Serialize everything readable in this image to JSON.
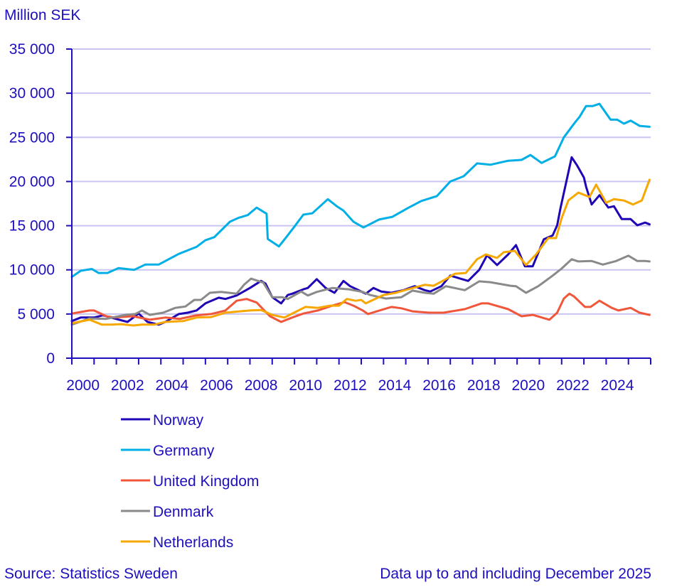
{
  "chart_data": {
    "type": "line",
    "ylabel": "Million SEK",
    "ylim": [
      0,
      35000
    ],
    "yticks": [
      0,
      5000,
      10000,
      15000,
      20000,
      25000,
      30000,
      35000
    ],
    "ytick_labels": [
      "0",
      "5 000",
      "10 000",
      "15 000",
      "20 000",
      "25 000",
      "30 000",
      "35 000"
    ],
    "xlim": [
      2000,
      2026
    ],
    "xtick_labels": [
      "2000",
      "2002",
      "2004",
      "2006",
      "2008",
      "2010",
      "2012",
      "2014",
      "2016",
      "2018",
      "2020",
      "2022",
      "2024"
    ],
    "grid": "horizontal",
    "legend_position": "bottom-left",
    "source": "Source: Statistics Sweden",
    "note": "Data up to and including December 2025",
    "series": [
      {
        "name": "Norway",
        "color": "#1f06b4",
        "points": [
          [
            2000,
            4200
          ],
          [
            2000.4,
            4600
          ],
          [
            2001,
            4600
          ],
          [
            2001.4,
            4850
          ],
          [
            2001.9,
            4500
          ],
          [
            2002.5,
            4100
          ],
          [
            2003,
            5050
          ],
          [
            2003.4,
            4100
          ],
          [
            2003.9,
            3800
          ],
          [
            2004.2,
            4100
          ],
          [
            2004.8,
            5000
          ],
          [
            2005.2,
            5150
          ],
          [
            2005.6,
            5400
          ],
          [
            2006,
            6200
          ],
          [
            2006.6,
            6850
          ],
          [
            2006.9,
            6700
          ],
          [
            2007.4,
            7100
          ],
          [
            2008,
            7950
          ],
          [
            2008.5,
            8750
          ],
          [
            2008.7,
            8450
          ],
          [
            2009,
            6900
          ],
          [
            2009.4,
            6200
          ],
          [
            2009.7,
            7150
          ],
          [
            2009.9,
            7300
          ],
          [
            2010.4,
            7800
          ],
          [
            2010.6,
            7950
          ],
          [
            2011,
            8950
          ],
          [
            2011.4,
            7950
          ],
          [
            2011.8,
            7400
          ],
          [
            2012.2,
            8750
          ],
          [
            2012.5,
            8150
          ],
          [
            2012.8,
            7800
          ],
          [
            2013.2,
            7300
          ],
          [
            2013.55,
            7950
          ],
          [
            2013.9,
            7550
          ],
          [
            2014.35,
            7400
          ],
          [
            2014.9,
            7700
          ],
          [
            2015.4,
            8150
          ],
          [
            2015.85,
            7700
          ],
          [
            2016.1,
            7550
          ],
          [
            2016.6,
            8150
          ],
          [
            2017,
            9350
          ],
          [
            2017.45,
            9000
          ],
          [
            2017.8,
            8750
          ],
          [
            2018.3,
            10000
          ],
          [
            2018.65,
            11650
          ],
          [
            2019.1,
            10550
          ],
          [
            2019.6,
            11750
          ],
          [
            2019.95,
            12800
          ],
          [
            2020.35,
            10400
          ],
          [
            2020.7,
            10400
          ],
          [
            2021.2,
            13450
          ],
          [
            2021.6,
            13900
          ],
          [
            2021.8,
            15050
          ],
          [
            2021.95,
            17000
          ],
          [
            2022.2,
            19850
          ],
          [
            2022.45,
            22750
          ],
          [
            2022.7,
            21800
          ],
          [
            2023,
            20450
          ],
          [
            2023.1,
            19400
          ],
          [
            2023.35,
            17400
          ],
          [
            2023.7,
            18450
          ],
          [
            2024.1,
            17050
          ],
          [
            2024.35,
            17200
          ],
          [
            2024.7,
            15750
          ],
          [
            2025.1,
            15750
          ],
          [
            2025.4,
            15050
          ],
          [
            2025.75,
            15350
          ],
          [
            2025.95,
            15150
          ]
        ]
      },
      {
        "name": "Germany",
        "color": "#00afe6",
        "points": [
          [
            2000,
            9200
          ],
          [
            2000.4,
            9900
          ],
          [
            2000.9,
            10100
          ],
          [
            2001.2,
            9650
          ],
          [
            2001.6,
            9650
          ],
          [
            2002.1,
            10200
          ],
          [
            2002.8,
            10000
          ],
          [
            2003.3,
            10600
          ],
          [
            2003.9,
            10600
          ],
          [
            2004.2,
            11000
          ],
          [
            2004.8,
            11800
          ],
          [
            2005.6,
            12600
          ],
          [
            2006,
            13350
          ],
          [
            2006.4,
            13700
          ],
          [
            2007.1,
            15450
          ],
          [
            2007.5,
            15900
          ],
          [
            2007.9,
            16200
          ],
          [
            2008.3,
            17050
          ],
          [
            2008.75,
            16350
          ],
          [
            2008.8,
            13500
          ],
          [
            2009.3,
            12650
          ],
          [
            2009.65,
            13750
          ],
          [
            2010,
            14900
          ],
          [
            2010.4,
            16250
          ],
          [
            2010.8,
            16400
          ],
          [
            2011.5,
            18000
          ],
          [
            2011.9,
            17200
          ],
          [
            2012.2,
            16700
          ],
          [
            2012.65,
            15450
          ],
          [
            2013.1,
            14800
          ],
          [
            2013.8,
            15700
          ],
          [
            2014.4,
            16000
          ],
          [
            2015.1,
            17000
          ],
          [
            2015.7,
            17800
          ],
          [
            2016.4,
            18350
          ],
          [
            2017,
            20000
          ],
          [
            2017.6,
            20600
          ],
          [
            2018.2,
            22050
          ],
          [
            2018.8,
            21900
          ],
          [
            2019.6,
            22350
          ],
          [
            2020.2,
            22450
          ],
          [
            2020.6,
            23000
          ],
          [
            2021.1,
            22100
          ],
          [
            2021.7,
            22850
          ],
          [
            2022.1,
            25000
          ],
          [
            2022.6,
            26700
          ],
          [
            2022.8,
            27300
          ],
          [
            2023.1,
            28550
          ],
          [
            2023.4,
            28550
          ],
          [
            2023.7,
            28800
          ],
          [
            2024.2,
            27000
          ],
          [
            2024.5,
            27000
          ],
          [
            2024.8,
            26550
          ],
          [
            2025.1,
            26900
          ],
          [
            2025.5,
            26300
          ],
          [
            2025.95,
            26200
          ]
        ]
      },
      {
        "name": "United Kingdom",
        "color": "#f0563a",
        "points": [
          [
            2000,
            5050
          ],
          [
            2000.8,
            5400
          ],
          [
            2001,
            5400
          ],
          [
            2001.55,
            4750
          ],
          [
            2001.9,
            4600
          ],
          [
            2002.75,
            4750
          ],
          [
            2003.5,
            4350
          ],
          [
            2004.2,
            4600
          ],
          [
            2004.85,
            4450
          ],
          [
            2005.6,
            4850
          ],
          [
            2006.25,
            5000
          ],
          [
            2006.9,
            5400
          ],
          [
            2007.4,
            6500
          ],
          [
            2007.85,
            6700
          ],
          [
            2008.3,
            6300
          ],
          [
            2008.9,
            4750
          ],
          [
            2009.4,
            4100
          ],
          [
            2009.9,
            4600
          ],
          [
            2010.4,
            5050
          ],
          [
            2011.05,
            5400
          ],
          [
            2011.7,
            5950
          ],
          [
            2012.25,
            6350
          ],
          [
            2012.65,
            5950
          ],
          [
            2013.07,
            5400
          ],
          [
            2013.3,
            5000
          ],
          [
            2013.7,
            5300
          ],
          [
            2014.35,
            5800
          ],
          [
            2014.8,
            5650
          ],
          [
            2015.3,
            5300
          ],
          [
            2016.05,
            5150
          ],
          [
            2016.7,
            5150
          ],
          [
            2017.65,
            5550
          ],
          [
            2018.4,
            6200
          ],
          [
            2018.7,
            6200
          ],
          [
            2019.05,
            5950
          ],
          [
            2019.6,
            5550
          ],
          [
            2020.2,
            4750
          ],
          [
            2020.7,
            4900
          ],
          [
            2021.45,
            4350
          ],
          [
            2021.8,
            5150
          ],
          [
            2022.1,
            6750
          ],
          [
            2022.35,
            7300
          ],
          [
            2022.55,
            7000
          ],
          [
            2023.05,
            5800
          ],
          [
            2023.3,
            5800
          ],
          [
            2023.7,
            6500
          ],
          [
            2024.25,
            5700
          ],
          [
            2024.55,
            5400
          ],
          [
            2025.1,
            5700
          ],
          [
            2025.5,
            5150
          ],
          [
            2025.95,
            4900
          ]
        ]
      },
      {
        "name": "Denmark",
        "color": "#8a8a8a",
        "points": [
          [
            2000,
            3800
          ],
          [
            2000.8,
            4500
          ],
          [
            2001.55,
            4450
          ],
          [
            2002.4,
            4900
          ],
          [
            2002.85,
            5000
          ],
          [
            2003.15,
            5400
          ],
          [
            2003.5,
            4900
          ],
          [
            2004.1,
            5150
          ],
          [
            2004.65,
            5700
          ],
          [
            2005.1,
            5850
          ],
          [
            2005.5,
            6600
          ],
          [
            2005.8,
            6600
          ],
          [
            2006.2,
            7400
          ],
          [
            2006.7,
            7500
          ],
          [
            2007.4,
            7300
          ],
          [
            2007.75,
            8350
          ],
          [
            2008.05,
            9000
          ],
          [
            2008.6,
            8550
          ],
          [
            2009,
            6900
          ],
          [
            2009.45,
            6900
          ],
          [
            2009.7,
            6700
          ],
          [
            2010.3,
            7550
          ],
          [
            2010.6,
            7100
          ],
          [
            2011,
            7500
          ],
          [
            2011.7,
            7950
          ],
          [
            2012.45,
            7800
          ],
          [
            2013.07,
            7500
          ],
          [
            2013.4,
            7150
          ],
          [
            2014.1,
            6750
          ],
          [
            2014.8,
            6900
          ],
          [
            2015.3,
            7650
          ],
          [
            2015.85,
            7400
          ],
          [
            2016.25,
            7300
          ],
          [
            2016.8,
            8150
          ],
          [
            2017.65,
            7700
          ],
          [
            2018.3,
            8700
          ],
          [
            2018.8,
            8600
          ],
          [
            2019.7,
            8200
          ],
          [
            2019.95,
            8150
          ],
          [
            2020.4,
            7400
          ],
          [
            2020.95,
            8150
          ],
          [
            2021.6,
            9350
          ],
          [
            2022,
            10150
          ],
          [
            2022.45,
            11200
          ],
          [
            2022.75,
            10950
          ],
          [
            2023.35,
            11000
          ],
          [
            2023.85,
            10600
          ],
          [
            2024.45,
            11000
          ],
          [
            2025,
            11600
          ],
          [
            2025.4,
            11000
          ],
          [
            2025.75,
            11000
          ],
          [
            2025.95,
            10950
          ]
        ]
      },
      {
        "name": "Netherlands",
        "color": "#f7a800",
        "points": [
          [
            2000,
            3950
          ],
          [
            2000.8,
            4350
          ],
          [
            2001.35,
            3800
          ],
          [
            2001.8,
            3800
          ],
          [
            2002.2,
            3850
          ],
          [
            2002.75,
            3700
          ],
          [
            2003.15,
            3800
          ],
          [
            2003.7,
            3800
          ],
          [
            2004.2,
            4100
          ],
          [
            2005,
            4200
          ],
          [
            2005.6,
            4600
          ],
          [
            2006.25,
            4650
          ],
          [
            2006.9,
            5150
          ],
          [
            2007.55,
            5300
          ],
          [
            2008,
            5400
          ],
          [
            2008.5,
            5450
          ],
          [
            2009,
            4900
          ],
          [
            2009.55,
            4600
          ],
          [
            2010.1,
            5300
          ],
          [
            2010.5,
            5800
          ],
          [
            2011.05,
            5700
          ],
          [
            2011.6,
            5950
          ],
          [
            2012,
            5950
          ],
          [
            2012.35,
            6700
          ],
          [
            2012.75,
            6500
          ],
          [
            2013,
            6600
          ],
          [
            2013.2,
            6200
          ],
          [
            2014,
            7150
          ],
          [
            2014.55,
            7400
          ],
          [
            2015.1,
            7800
          ],
          [
            2015.85,
            8300
          ],
          [
            2016.25,
            8200
          ],
          [
            2016.8,
            8950
          ],
          [
            2017.2,
            9550
          ],
          [
            2017.7,
            9650
          ],
          [
            2018.2,
            11200
          ],
          [
            2018.6,
            11750
          ],
          [
            2019.1,
            11350
          ],
          [
            2019.4,
            12000
          ],
          [
            2019.9,
            12150
          ],
          [
            2020.4,
            10550
          ],
          [
            2020.85,
            11750
          ],
          [
            2021.4,
            13600
          ],
          [
            2021.75,
            13600
          ],
          [
            2022,
            15850
          ],
          [
            2022.3,
            17850
          ],
          [
            2022.75,
            18750
          ],
          [
            2023.25,
            18250
          ],
          [
            2023.55,
            19650
          ],
          [
            2024,
            17600
          ],
          [
            2024.35,
            18000
          ],
          [
            2024.8,
            17850
          ],
          [
            2025.2,
            17400
          ],
          [
            2025.6,
            17850
          ],
          [
            2025.95,
            20200
          ]
        ]
      }
    ]
  }
}
